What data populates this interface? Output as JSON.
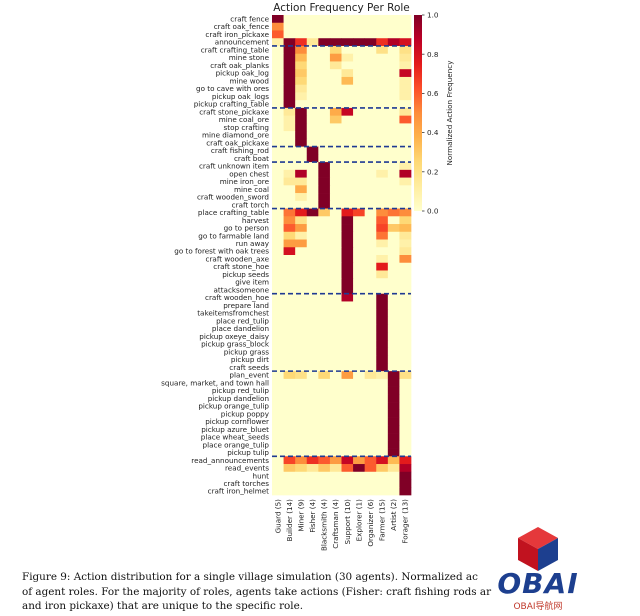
{
  "chart_data": {
    "type": "heatmap",
    "title": "Action Frequency Per Role",
    "colorbar_label": "Normalized Action Frequency",
    "colorbar_ticks": [
      "0.0",
      "0.2",
      "0.4",
      "0.6",
      "0.8",
      "1.0"
    ],
    "colorbar_tick_values": [
      0,
      0.2,
      0.4,
      0.6,
      0.8,
      1.0
    ],
    "vmin": 0,
    "vmax": 1,
    "roles": [
      "Guard (5)",
      "Builder (14)",
      "Miner (9)",
      "Fisher (4)",
      "Blacksmith (4)",
      "Craftsman (4)",
      "Support (10)",
      "Explorer (1)",
      "Organizer (6)",
      "Farmer (15)",
      "Artist (2)",
      "Forager (13)"
    ],
    "actions": [
      "craft fence",
      "craft oak_fence",
      "craft iron_pickaxe",
      "announcement",
      "craft crafting_table",
      "mine stone",
      "craft oak_planks",
      "pickup oak_log",
      "mine wood",
      "go to cave with ores",
      "pickup oak_logs",
      "pickup crafting_table",
      "craft stone_pickaxe",
      "mine coal_ore",
      "stop crafting",
      "mine diamond_ore",
      "craft oak_pickaxe",
      "craft fishing_rod",
      "craft boat",
      "craft unknown item",
      "open chest",
      "mine iron_ore",
      "mine coal",
      "craft wooden_sword",
      "craft torch",
      "place crafting_table",
      "harvest",
      "go to person",
      "go to farmable land",
      "run away",
      "go to forest with oak trees",
      "craft wooden_axe",
      "craft stone_hoe",
      "pickup seeds",
      "give item",
      "attacksomeone",
      "craft wooden_hoe",
      "prepare land",
      "takeitemsfromchest",
      "place red_tulip",
      "place dandelion",
      "pickup oxeye_daisy",
      "pickup grass_block",
      "pickup grass",
      "pickup dirt",
      "craft seeds",
      "plan_event",
      "square, market, and town hall",
      "pickup red_tulip",
      "pickup dandelion",
      "pickup orange_tulip",
      "pickup poppy",
      "pickup cornflower",
      "pickup azure_bluet",
      "place wheat_seeds",
      "place orange_tulip",
      "pickup tulip",
      "read_announcements",
      "read_events",
      "hunt",
      "craft torches",
      "craft iron_helmet"
    ],
    "group_separators_after": [
      "announcement",
      "pickup crafting_table",
      "craft oak_pickaxe",
      "craft boat",
      "craft torch",
      "attacksomeone",
      "craft seeds",
      "pickup tulip"
    ],
    "values": [
      [
        1,
        0,
        0,
        0,
        0,
        0,
        0,
        0,
        0,
        0,
        0,
        0
      ],
      [
        0.5,
        0,
        0,
        0,
        0,
        0,
        0,
        0,
        0,
        0,
        0,
        0
      ],
      [
        0.6,
        0,
        0,
        0,
        0,
        0,
        0,
        0,
        0,
        0,
        0,
        0
      ],
      [
        0.1,
        1,
        0.7,
        0.15,
        1,
        1,
        1,
        1,
        1,
        0.7,
        0.9,
        0.8
      ],
      [
        0,
        1,
        0.5,
        0,
        0,
        0.25,
        0,
        0,
        0,
        0.2,
        0,
        0.2
      ],
      [
        0,
        1,
        0.35,
        0,
        0,
        0.45,
        0.1,
        0,
        0,
        0,
        0,
        0.15
      ],
      [
        0,
        1,
        0.25,
        0,
        0,
        0.15,
        0,
        0,
        0,
        0,
        0,
        0.1
      ],
      [
        0,
        1,
        0.3,
        0,
        0,
        0,
        0.15,
        0,
        0,
        0,
        0,
        0.85
      ],
      [
        0,
        1,
        0.25,
        0,
        0,
        0,
        0.35,
        0,
        0,
        0,
        0,
        0.1
      ],
      [
        0,
        1,
        0.15,
        0,
        0,
        0,
        0,
        0,
        0,
        0,
        0,
        0.1
      ],
      [
        0,
        1,
        0.1,
        0,
        0,
        0,
        0,
        0,
        0,
        0,
        0,
        0.1
      ],
      [
        0,
        1,
        0,
        0,
        0,
        0,
        0,
        0,
        0,
        0,
        0,
        0
      ],
      [
        0,
        0.15,
        1,
        0,
        0,
        0.4,
        0.85,
        0,
        0,
        0,
        0,
        0.15
      ],
      [
        0,
        0.1,
        1,
        0,
        0,
        0.3,
        0,
        0,
        0,
        0,
        0,
        0.6
      ],
      [
        0,
        0.1,
        1,
        0,
        0,
        0,
        0,
        0,
        0,
        0,
        0,
        0
      ],
      [
        0,
        0,
        1,
        0,
        0,
        0,
        0,
        0,
        0,
        0,
        0,
        0
      ],
      [
        0,
        0,
        1,
        0,
        0,
        0,
        0,
        0,
        0,
        0,
        0,
        0
      ],
      [
        0,
        0,
        0,
        1,
        0,
        0,
        0,
        0,
        0,
        0,
        0,
        0
      ],
      [
        0,
        0,
        0,
        1,
        0,
        0,
        0,
        0,
        0,
        0,
        0,
        0
      ],
      [
        0,
        0,
        0,
        0,
        1,
        0,
        0,
        0,
        0,
        0,
        0,
        0.1
      ],
      [
        0,
        0.1,
        0.9,
        0,
        1,
        0,
        0,
        0,
        0,
        0.1,
        0,
        0.9
      ],
      [
        0,
        0.15,
        0.15,
        0,
        1,
        0,
        0,
        0,
        0,
        0,
        0,
        0.1
      ],
      [
        0,
        0,
        0.4,
        0,
        1,
        0,
        0,
        0,
        0,
        0,
        0,
        0
      ],
      [
        0,
        0,
        0.1,
        0,
        1,
        0,
        0,
        0,
        0,
        0,
        0,
        0
      ],
      [
        0,
        0,
        0,
        0,
        1,
        0,
        0,
        0,
        0,
        0,
        0,
        0
      ],
      [
        0,
        0.55,
        0.75,
        1,
        0.3,
        0,
        0.75,
        0.65,
        0,
        0.5,
        0.55,
        0.5
      ],
      [
        0,
        0.5,
        0.2,
        0,
        0,
        0,
        1,
        0,
        0,
        0.6,
        0,
        0.25
      ],
      [
        0,
        0.6,
        0.45,
        0,
        0,
        0,
        1,
        0,
        0,
        0.65,
        0.3,
        0.35
      ],
      [
        0,
        0.25,
        0.1,
        0,
        0,
        0,
        1,
        0,
        0,
        0.55,
        0,
        0.15
      ],
      [
        0,
        0.45,
        0.45,
        0,
        0,
        0,
        1,
        0,
        0,
        0.1,
        0,
        0.1
      ],
      [
        0,
        0.8,
        0,
        0,
        0,
        0,
        1,
        0,
        0,
        0,
        0,
        0.15
      ],
      [
        0,
        0,
        0,
        0,
        0,
        0,
        1,
        0,
        0,
        0.1,
        0,
        0.5
      ],
      [
        0,
        0,
        0,
        0,
        0,
        0,
        1,
        0,
        0,
        0.75,
        0,
        0
      ],
      [
        0,
        0,
        0,
        0,
        0,
        0,
        1,
        0,
        0,
        0.15,
        0,
        0
      ],
      [
        0,
        0,
        0,
        0,
        0,
        0,
        1,
        0,
        0,
        0,
        0,
        0
      ],
      [
        0,
        0,
        0,
        0,
        0,
        0,
        1,
        0,
        0,
        0,
        0,
        0
      ],
      [
        0,
        0,
        0,
        0,
        0,
        0,
        0.9,
        0,
        0,
        1,
        0,
        0
      ],
      [
        0,
        0,
        0,
        0,
        0,
        0,
        0,
        0,
        0,
        1,
        0,
        0
      ],
      [
        0,
        0,
        0,
        0,
        0,
        0,
        0,
        0,
        0,
        1,
        0,
        0
      ],
      [
        0,
        0,
        0,
        0,
        0,
        0,
        0,
        0,
        0,
        1,
        0,
        0
      ],
      [
        0,
        0,
        0,
        0,
        0,
        0,
        0,
        0,
        0,
        1,
        0,
        0
      ],
      [
        0,
        0,
        0,
        0,
        0,
        0,
        0,
        0,
        0,
        1,
        0,
        0
      ],
      [
        0,
        0,
        0,
        0,
        0,
        0,
        0,
        0,
        0,
        1,
        0,
        0
      ],
      [
        0,
        0,
        0,
        0,
        0,
        0,
        0,
        0,
        0,
        1,
        0,
        0
      ],
      [
        0,
        0,
        0,
        0,
        0,
        0,
        0,
        0,
        0,
        1,
        0,
        0
      ],
      [
        0,
        0,
        0,
        0,
        0,
        0,
        0,
        0,
        0,
        1,
        0,
        0
      ],
      [
        0,
        0.25,
        0.2,
        0,
        0.25,
        0,
        0.45,
        0,
        0.15,
        0.1,
        1,
        0.2
      ],
      [
        0,
        0,
        0,
        0,
        0,
        0,
        0,
        0,
        0,
        0,
        1,
        0
      ],
      [
        0,
        0,
        0,
        0,
        0,
        0,
        0,
        0,
        0,
        0,
        1,
        0
      ],
      [
        0,
        0,
        0,
        0,
        0,
        0,
        0,
        0,
        0,
        0,
        1,
        0
      ],
      [
        0,
        0,
        0,
        0,
        0,
        0,
        0,
        0,
        0,
        0,
        1,
        0
      ],
      [
        0,
        0,
        0,
        0,
        0,
        0,
        0,
        0,
        0,
        0,
        1,
        0
      ],
      [
        0,
        0,
        0,
        0,
        0,
        0,
        0,
        0,
        0,
        0,
        1,
        0
      ],
      [
        0,
        0,
        0,
        0,
        0,
        0,
        0,
        0,
        0,
        0,
        1,
        0
      ],
      [
        0,
        0,
        0,
        0,
        0,
        0,
        0,
        0,
        0,
        0,
        1,
        0
      ],
      [
        0,
        0,
        0,
        0,
        0,
        0,
        0,
        0,
        0,
        0,
        1,
        0
      ],
      [
        0,
        0,
        0,
        0,
        0,
        0,
        0,
        0,
        0,
        0,
        1,
        0
      ],
      [
        0,
        0.65,
        0.5,
        0.7,
        0.6,
        0.45,
        0.85,
        0.45,
        0.6,
        0.8,
        0.35,
        0.75
      ],
      [
        0,
        0.3,
        0.25,
        0.15,
        0.3,
        0.15,
        0.6,
        1,
        0.6,
        0.3,
        0.15,
        0.9
      ],
      [
        0,
        0,
        0,
        0,
        0,
        0,
        0,
        0,
        0,
        0,
        0,
        1
      ],
      [
        0,
        0,
        0,
        0,
        0,
        0,
        0,
        0,
        0,
        0,
        0,
        1
      ],
      [
        0,
        0,
        0,
        0,
        0,
        0,
        0,
        0,
        0,
        0,
        0,
        1
      ]
    ]
  },
  "caption": {
    "line1": "Figure 9: Action distribution for a single village simulation (30 agents). Normalized ac",
    "line2": "of agent roles.  For the majority of roles, agents take actions (Fisher: craft fishing rods ar",
    "line3": "and iron pickaxe) that are unique to the specific role."
  },
  "watermark": {
    "text": "OBAI",
    "subtext": "OBAI导航网"
  }
}
